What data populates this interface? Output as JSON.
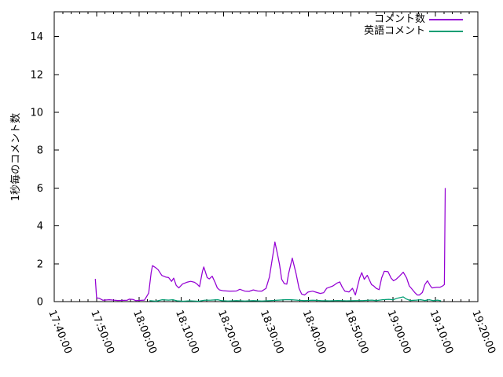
{
  "chart_data": {
    "type": "line",
    "title": "",
    "ylabel": "1秒毎のコメント数",
    "xlabel": "",
    "grid": false,
    "legend_position": "top-right-inside",
    "x_start": "17:40:00",
    "x_end": "19:20:00",
    "x_major_interval_min": 10,
    "x_minor_interval_min": 2,
    "x_tick_labels": [
      "17:40:00",
      "17:50:00",
      "18:00:00",
      "18:10:00",
      "18:20:00",
      "18:30:00",
      "18:40:00",
      "18:50:00",
      "19:00:00",
      "19:10:00",
      "19:20:00"
    ],
    "y_tick_values": [
      0,
      2,
      4,
      6,
      8,
      10,
      12,
      14
    ],
    "y_axis_max_displayed": 15.31,
    "axis_color": "#000000",
    "background_color": "#ffffff",
    "series": [
      {
        "name": "コメント数",
        "color": "#9400d3",
        "points": [
          [
            "17:49:42",
            1.2
          ],
          [
            "17:50:00",
            0.2
          ],
          [
            "17:50:36",
            0.18
          ],
          [
            "17:51:30",
            0.07
          ],
          [
            "17:53:00",
            0.1
          ],
          [
            "17:55:00",
            0.06
          ],
          [
            "17:57:12",
            0.07
          ],
          [
            "17:57:42",
            0.13
          ],
          [
            "17:58:36",
            0.11
          ],
          [
            "17:59:18",
            0.05
          ],
          [
            "18:01:18",
            0.08
          ],
          [
            "18:02:18",
            0.45
          ],
          [
            "18:02:54",
            1.55
          ],
          [
            "18:03:12",
            1.9
          ],
          [
            "18:03:54",
            1.8
          ],
          [
            "18:04:30",
            1.69
          ],
          [
            "18:05:24",
            1.38
          ],
          [
            "18:06:18",
            1.3
          ],
          [
            "18:07:00",
            1.27
          ],
          [
            "18:07:42",
            1.07
          ],
          [
            "18:08:12",
            1.24
          ],
          [
            "18:08:48",
            0.86
          ],
          [
            "18:09:24",
            0.72
          ],
          [
            "18:10:18",
            0.93
          ],
          [
            "18:11:18",
            1.02
          ],
          [
            "18:12:12",
            1.07
          ],
          [
            "18:13:06",
            1.02
          ],
          [
            "18:13:42",
            0.93
          ],
          [
            "18:14:18",
            0.79
          ],
          [
            "18:15:00",
            1.6
          ],
          [
            "18:15:18",
            1.83
          ],
          [
            "18:15:48",
            1.48
          ],
          [
            "18:16:06",
            1.27
          ],
          [
            "18:16:36",
            1.2
          ],
          [
            "18:17:18",
            1.34
          ],
          [
            "18:18:00",
            1.0
          ],
          [
            "18:18:30",
            0.72
          ],
          [
            "18:19:00",
            0.62
          ],
          [
            "18:20:00",
            0.57
          ],
          [
            "18:21:30",
            0.55
          ],
          [
            "18:23:00",
            0.56
          ],
          [
            "18:23:48",
            0.65
          ],
          [
            "18:25:00",
            0.55
          ],
          [
            "18:26:00",
            0.54
          ],
          [
            "18:27:00",
            0.62
          ],
          [
            "18:28:00",
            0.56
          ],
          [
            "18:29:00",
            0.55
          ],
          [
            "18:30:00",
            0.7
          ],
          [
            "18:30:48",
            1.3
          ],
          [
            "18:31:30",
            2.3
          ],
          [
            "18:32:06",
            3.15
          ],
          [
            "18:32:42",
            2.5
          ],
          [
            "18:33:12",
            1.95
          ],
          [
            "18:33:42",
            1.18
          ],
          [
            "18:34:18",
            0.95
          ],
          [
            "18:34:54",
            0.92
          ],
          [
            "18:35:18",
            1.46
          ],
          [
            "18:36:12",
            2.3
          ],
          [
            "18:37:06",
            1.46
          ],
          [
            "18:37:48",
            0.7
          ],
          [
            "18:38:24",
            0.4
          ],
          [
            "18:39:06",
            0.35
          ],
          [
            "18:39:54",
            0.5
          ],
          [
            "18:41:00",
            0.55
          ],
          [
            "18:42:00",
            0.48
          ],
          [
            "18:42:48",
            0.43
          ],
          [
            "18:43:36",
            0.47
          ],
          [
            "18:44:18",
            0.7
          ],
          [
            "18:45:00",
            0.76
          ],
          [
            "18:45:48",
            0.83
          ],
          [
            "18:46:42",
            0.97
          ],
          [
            "18:47:24",
            1.04
          ],
          [
            "18:48:00",
            0.76
          ],
          [
            "18:48:36",
            0.55
          ],
          [
            "18:49:36",
            0.51
          ],
          [
            "18:50:24",
            0.7
          ],
          [
            "18:51:06",
            0.35
          ],
          [
            "18:52:06",
            1.25
          ],
          [
            "18:52:36",
            1.53
          ],
          [
            "18:53:12",
            1.18
          ],
          [
            "18:53:54",
            1.39
          ],
          [
            "18:54:54",
            0.9
          ],
          [
            "18:55:24",
            0.83
          ],
          [
            "18:56:00",
            0.7
          ],
          [
            "18:56:42",
            0.63
          ],
          [
            "18:57:18",
            1.25
          ],
          [
            "18:57:54",
            1.6
          ],
          [
            "18:58:48",
            1.58
          ],
          [
            "18:59:30",
            1.25
          ],
          [
            "19:00:06",
            1.1
          ],
          [
            "19:00:42",
            1.18
          ],
          [
            "19:01:24",
            1.32
          ],
          [
            "19:02:24",
            1.55
          ],
          [
            "19:03:12",
            1.25
          ],
          [
            "19:03:48",
            0.83
          ],
          [
            "19:04:18",
            0.7
          ],
          [
            "19:05:06",
            0.48
          ],
          [
            "19:05:42",
            0.35
          ],
          [
            "19:06:12",
            0.35
          ],
          [
            "19:06:54",
            0.48
          ],
          [
            "19:07:30",
            0.9
          ],
          [
            "19:08:06",
            1.1
          ],
          [
            "19:08:48",
            0.83
          ],
          [
            "19:09:12",
            0.72
          ],
          [
            "19:10:18",
            0.76
          ],
          [
            "19:11:06",
            0.76
          ],
          [
            "19:11:42",
            0.83
          ],
          [
            "19:12:06",
            0.9
          ],
          [
            "19:12:18",
            6.0
          ]
        ]
      },
      {
        "name": "英語コメント",
        "color": "#009e73",
        "points": [
          [
            "18:02:30",
            0.05
          ],
          [
            "18:04:00",
            0.02
          ],
          [
            "18:05:30",
            0.1
          ],
          [
            "18:07:00",
            0.08
          ],
          [
            "18:08:00",
            0.1
          ],
          [
            "18:09:00",
            0.04
          ],
          [
            "18:10:30",
            0.02
          ],
          [
            "18:12:00",
            0.04
          ],
          [
            "18:14:00",
            0.02
          ],
          [
            "18:15:30",
            0.07
          ],
          [
            "18:17:00",
            0.08
          ],
          [
            "18:18:36",
            0.1
          ],
          [
            "18:19:30",
            0.05
          ],
          [
            "18:21:00",
            0.03
          ],
          [
            "18:23:00",
            0.05
          ],
          [
            "18:25:00",
            0.03
          ],
          [
            "18:27:00",
            0.05
          ],
          [
            "18:29:00",
            0.03
          ],
          [
            "18:31:00",
            0.05
          ],
          [
            "18:33:00",
            0.08
          ],
          [
            "18:34:30",
            0.1
          ],
          [
            "18:36:00",
            0.1
          ],
          [
            "18:37:30",
            0.07
          ],
          [
            "18:39:00",
            0.05
          ],
          [
            "18:41:00",
            0.07
          ],
          [
            "18:43:00",
            0.05
          ],
          [
            "18:45:00",
            0.04
          ],
          [
            "18:47:00",
            0.06
          ],
          [
            "18:49:00",
            0.04
          ],
          [
            "18:51:00",
            0.05
          ],
          [
            "18:53:00",
            0.06
          ],
          [
            "18:55:00",
            0.08
          ],
          [
            "18:56:00",
            0.05
          ],
          [
            "18:57:30",
            0.1
          ],
          [
            "18:59:00",
            0.12
          ],
          [
            "19:00:00",
            0.1
          ],
          [
            "19:01:00",
            0.18
          ],
          [
            "19:02:24",
            0.25
          ],
          [
            "19:03:00",
            0.15
          ],
          [
            "19:04:00",
            0.06
          ],
          [
            "19:05:30",
            0.08
          ],
          [
            "19:06:30",
            0.1
          ],
          [
            "19:07:30",
            0.06
          ],
          [
            "19:08:30",
            0.1
          ],
          [
            "19:09:30",
            0.05
          ],
          [
            "19:10:30",
            0.08
          ],
          [
            "19:11:18",
            0.04
          ]
        ]
      }
    ]
  }
}
